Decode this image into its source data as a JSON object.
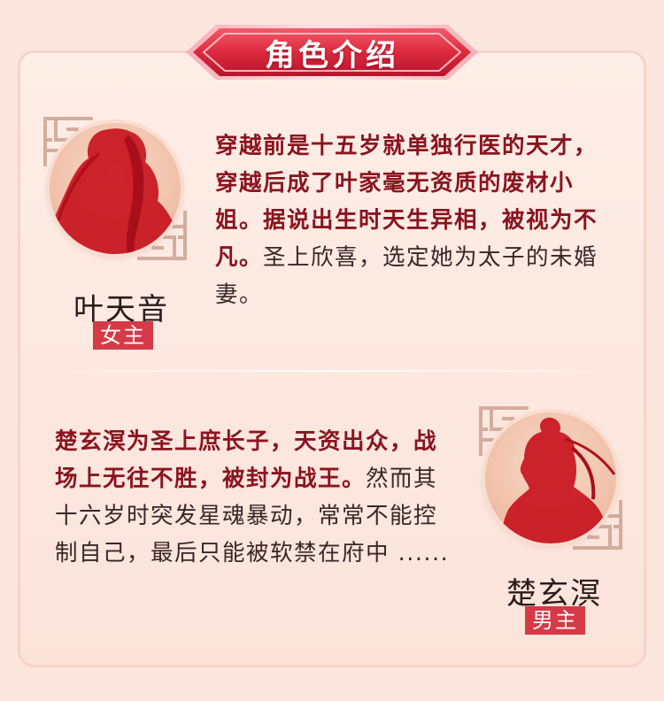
{
  "banner": {
    "title": "角色介绍"
  },
  "characters": [
    {
      "name": "叶天音",
      "role": "女主",
      "desc_bold": "穿越前是十五岁就单独行医的天才，穿越后成了叶家毫无资质的废材小姐。据说出生时天生异相，被视为不凡。",
      "desc_normal": "圣上欣喜，选定她为太子的未婚妻。"
    },
    {
      "name": "楚玄溟",
      "role": "男主",
      "desc_bold": "楚玄溟为圣上庶长子，天资出众，战场上无往不胜，被封为战王。",
      "desc_normal": "然而其十六岁时突发星魂暴动，常常不能控制自己，最后只能被软禁在府中 ......"
    }
  ],
  "colors": {
    "accent_red": "#d53a46",
    "bold_text": "#8a1420",
    "background": "#fbe6de"
  },
  "icons": [
    "fret-pattern-icon",
    "female-silhouette-icon",
    "male-silhouette-icon"
  ]
}
